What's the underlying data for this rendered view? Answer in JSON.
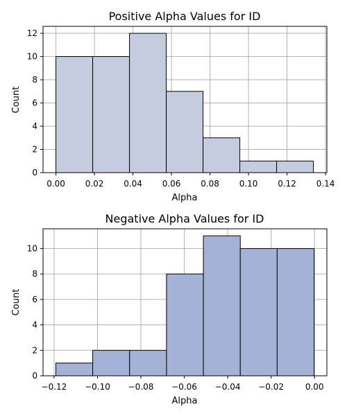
{
  "chart_data": [
    {
      "type": "bar",
      "title": "Positive Alpha Values for ID",
      "xlabel": "Alpha",
      "ylabel": "Count",
      "xlim": [
        -0.0067,
        0.1407
      ],
      "ylim": [
        0,
        12.6
      ],
      "xticks": [
        0.0,
        0.02,
        0.04,
        0.06,
        0.08,
        0.1,
        0.12,
        0.14
      ],
      "xtick_labels": [
        "0.00",
        "0.02",
        "0.04",
        "0.06",
        "0.08",
        "0.10",
        "0.12",
        "0.14"
      ],
      "yticks": [
        0,
        2,
        4,
        6,
        8,
        10,
        12
      ],
      "ytick_labels": [
        "0",
        "2",
        "4",
        "6",
        "8",
        "10",
        "12"
      ],
      "bin_edges": [
        0.0,
        0.0191,
        0.0382,
        0.0573,
        0.0764,
        0.0955,
        0.1146,
        0.1337
      ],
      "values": [
        10,
        10,
        12,
        7,
        3,
        1,
        1
      ],
      "bar_color": "#c4cde0",
      "grid": true
    },
    {
      "type": "bar",
      "title": "Negative Alpha Values for ID",
      "xlabel": "Alpha",
      "ylabel": "Count",
      "xlim": [
        -0.1251,
        0.0057
      ],
      "ylim": [
        0,
        11.55
      ],
      "xticks": [
        -0.12,
        -0.1,
        -0.08,
        -0.06,
        -0.04,
        -0.02,
        0.0
      ],
      "xtick_labels": [
        "−0.12",
        "−0.10",
        "−0.08",
        "−0.06",
        "−0.04",
        "−0.02",
        "0.00"
      ],
      "yticks": [
        0,
        2,
        4,
        6,
        8,
        10
      ],
      "ytick_labels": [
        "0",
        "2",
        "4",
        "6",
        "8",
        "10"
      ],
      "bin_edges": [
        -0.1192,
        -0.1022,
        -0.0852,
        -0.0682,
        -0.0512,
        -0.0342,
        -0.0172,
        -0.0002
      ],
      "values": [
        1,
        2,
        2,
        8,
        11,
        10,
        10
      ],
      "bar_color": "#a5b2d6",
      "grid": true
    }
  ]
}
